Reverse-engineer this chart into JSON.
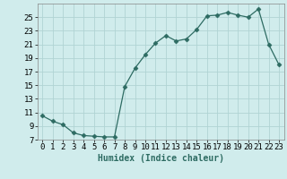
{
  "x": [
    0,
    1,
    2,
    3,
    4,
    5,
    6,
    7,
    8,
    9,
    10,
    11,
    12,
    13,
    14,
    15,
    16,
    17,
    18,
    19,
    20,
    21,
    22,
    23
  ],
  "y": [
    10.5,
    9.7,
    9.2,
    8.0,
    7.6,
    7.5,
    7.4,
    7.4,
    14.8,
    17.5,
    19.5,
    21.2,
    22.3,
    21.5,
    21.8,
    23.2,
    25.2,
    25.3,
    25.7,
    25.3,
    25.0,
    26.2,
    21.0,
    18.0
  ],
  "line_color": "#2d6b62",
  "marker": "D",
  "marker_size": 2.5,
  "bg_color": "#d0ecec",
  "grid_color": "#b0d4d4",
  "xlabel": "Humidex (Indice chaleur)",
  "xlabel_fontsize": 7,
  "tick_fontsize": 6.5,
  "ylim": [
    7,
    27
  ],
  "xlim": [
    -0.5,
    23.5
  ],
  "yticks": [
    7,
    9,
    11,
    13,
    15,
    17,
    19,
    21,
    23,
    25
  ],
  "xticks": [
    0,
    1,
    2,
    3,
    4,
    5,
    6,
    7,
    8,
    9,
    10,
    11,
    12,
    13,
    14,
    15,
    16,
    17,
    18,
    19,
    20,
    21,
    22,
    23
  ]
}
